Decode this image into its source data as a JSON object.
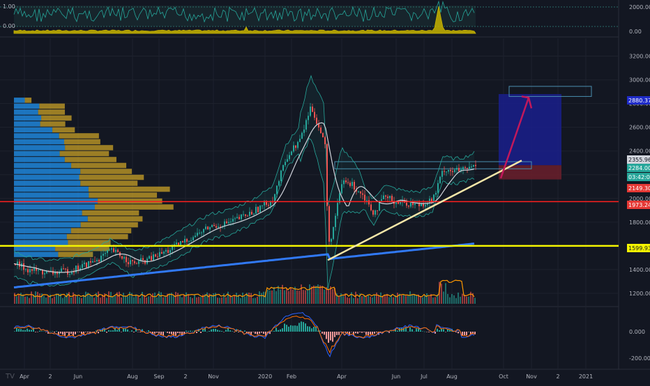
{
  "chart_data": [
    {
      "type": "line",
      "panel": "indicator-top",
      "left_labels": [
        "1.00",
        "0.00"
      ],
      "right_labels": [
        "2000.00",
        "0.00"
      ],
      "colors": {
        "line": "#26a69a",
        "area": "#c8b400"
      }
    },
    {
      "type": "candlestick",
      "panel": "price",
      "ylim": [
        1100,
        3350
      ],
      "y_ticks": [
        1200,
        1400,
        1600,
        1800,
        2000,
        2200,
        2400,
        2600,
        2800,
        3000,
        3200
      ],
      "y_tick_labels": [
        "1200.000",
        "1400.000",
        "1600.000",
        "1800.000",
        "2000.000",
        "2200.000",
        "2400.000",
        "2600.000",
        "2800.000",
        "3000.000",
        "3200.000"
      ],
      "x_labels": [
        "Apr",
        "2",
        "Jun",
        "Aug",
        "Sep",
        "2",
        "Nov",
        "2020",
        "Feb",
        "Apr",
        "Jun",
        "Jul",
        "Aug",
        "Oct",
        "Nov",
        "2",
        "2021"
      ],
      "price_tags": [
        {
          "value": 2880.376,
          "label": "2880.376",
          "bg": "#1e2bc8",
          "fg": "#ffffff"
        },
        {
          "value": 2355.962,
          "label": "2355.962",
          "bg": "#d1d4dc",
          "fg": "#131722"
        },
        {
          "value": 2284.0,
          "label": "2284.000",
          "bg": "#26a69a",
          "fg": "#ffffff"
        },
        {
          "value": 2250.0,
          "label": "03:42:03",
          "bg": "#26a69a",
          "fg": "#ffffff"
        },
        {
          "value": 2149.301,
          "label": "2149.301",
          "bg": "#e53935",
          "fg": "#ffffff"
        },
        {
          "value": 1973.24,
          "label": "1973.240",
          "bg": "#e53935",
          "fg": "#ffffff"
        },
        {
          "value": 1599.932,
          "label": "1599.932",
          "bg": "#f5f500",
          "fg": "#131722"
        }
      ],
      "horizontal_levels": [
        {
          "value": 1973.24,
          "color": "#ff1f1f"
        },
        {
          "value": 1599.932,
          "color": "#f5f500"
        }
      ],
      "trendline": {
        "from": [
          "2020-03-15",
          1480
        ],
        "to": [
          "2020-09-05",
          2320
        ],
        "color": "#f5e6a8"
      },
      "long_position": {
        "entry": 2280,
        "target": 2880,
        "stop": 2160
      },
      "volume_profile_levels": [
        1500,
        1550,
        1600,
        1650,
        1700,
        1750,
        1800,
        1850,
        1900,
        1950,
        2000,
        2050,
        2100,
        2150,
        2200,
        2250,
        2300,
        2350,
        2400,
        2450,
        2500,
        2550,
        2600,
        2650,
        2700,
        2750,
        2800
      ],
      "colors": {
        "up": "#26a69a",
        "down": "#ef5350",
        "ma_slow": "#3179f5",
        "ma_fast": "#d1d4dc",
        "bollinger": "#26a69a",
        "volume_ma": "#ff9800",
        "vp_up": "#2196f3",
        "vp_down": "#c9a227"
      }
    },
    {
      "type": "line",
      "panel": "macd",
      "y_tick_labels": [
        "0.000",
        "-200.000"
      ],
      "colors": {
        "macd": "#2962ff",
        "signal": "#ff6d00",
        "hist_up": "#26a69a",
        "hist_down": "#ef9a9a"
      }
    }
  ],
  "logo": "TV"
}
